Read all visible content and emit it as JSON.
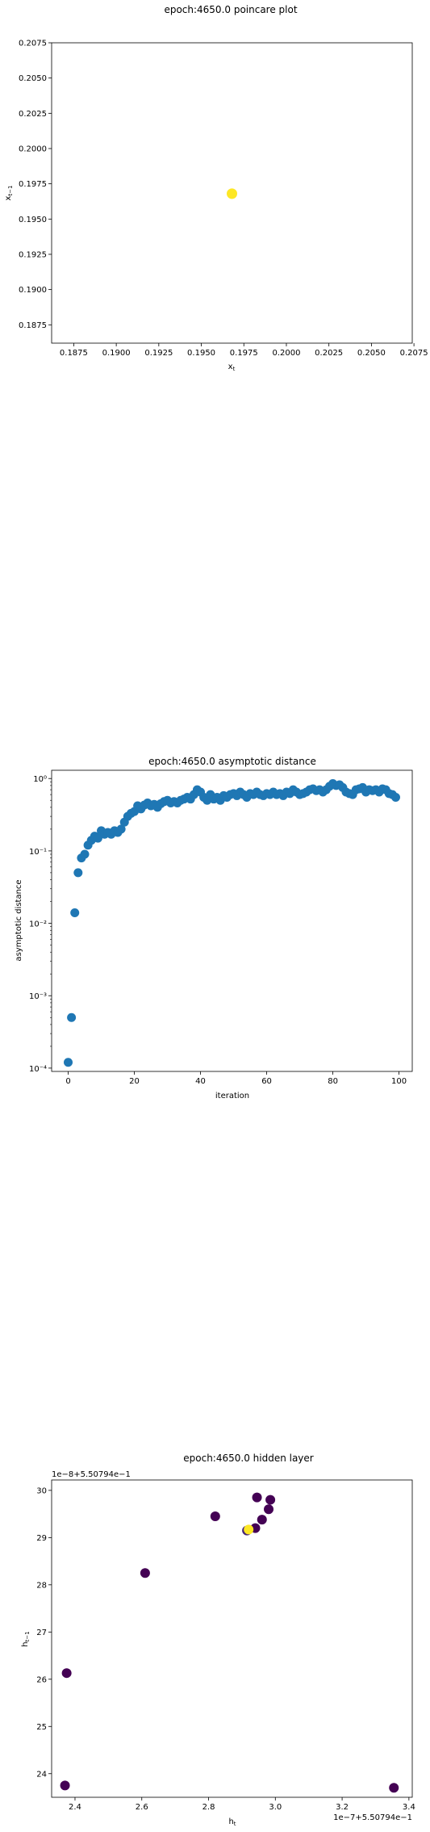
{
  "chart_data": [
    {
      "type": "scatter",
      "title": "epoch:4650.0 poincare plot",
      "xlabel": "x_t",
      "ylabel": "x_{t-1}",
      "xlim": [
        0.1862,
        0.2074
      ],
      "ylim": [
        0.1862,
        0.2075
      ],
      "xticks": [
        "0.1875",
        "0.1900",
        "0.1925",
        "0.1950",
        "0.1975",
        "0.2000",
        "0.2025",
        "0.2050",
        "0.2075"
      ],
      "yticks": [
        "0.1875",
        "0.1900",
        "0.1925",
        "0.1950",
        "0.1975",
        "0.2000",
        "0.2025",
        "0.2050",
        "0.2075"
      ],
      "points": [
        {
          "x": 0.1968,
          "y": 0.1968
        }
      ],
      "point_color": "#fde725"
    },
    {
      "type": "scatter",
      "title": "epoch:4650.0 asymptotic distance",
      "xlabel": "iteration",
      "ylabel": "asymptotic distance",
      "yscale": "log",
      "xlim": [
        -5,
        104
      ],
      "ylim": [
        9e-05,
        1.3
      ],
      "xticks": [
        "0",
        "20",
        "40",
        "60",
        "80",
        "100"
      ],
      "yticks": [
        "10⁻⁴",
        "10⁻³",
        "10⁻²",
        "10⁻¹",
        "10⁰"
      ],
      "point_color": "#1f77b4",
      "x": [
        0,
        1,
        2,
        3,
        4,
        5,
        6,
        7,
        8,
        9,
        10,
        11,
        12,
        13,
        14,
        15,
        16,
        17,
        18,
        19,
        20,
        21,
        22,
        23,
        24,
        25,
        26,
        27,
        28,
        29,
        30,
        31,
        32,
        33,
        34,
        35,
        36,
        37,
        38,
        39,
        40,
        41,
        42,
        43,
        44,
        45,
        46,
        47,
        48,
        49,
        50,
        51,
        52,
        53,
        54,
        55,
        56,
        57,
        58,
        59,
        60,
        61,
        62,
        63,
        64,
        65,
        66,
        67,
        68,
        69,
        70,
        71,
        72,
        73,
        74,
        75,
        76,
        77,
        78,
        79,
        80,
        81,
        82,
        83,
        84,
        85,
        86,
        87,
        88,
        89,
        90,
        91,
        92,
        93,
        94,
        95,
        96,
        97,
        98,
        99
      ],
      "y": [
        0.00012,
        0.0005,
        0.014,
        0.05,
        0.08,
        0.09,
        0.12,
        0.14,
        0.16,
        0.15,
        0.19,
        0.17,
        0.18,
        0.17,
        0.19,
        0.18,
        0.2,
        0.25,
        0.3,
        0.33,
        0.35,
        0.42,
        0.38,
        0.43,
        0.46,
        0.42,
        0.44,
        0.4,
        0.45,
        0.48,
        0.5,
        0.46,
        0.48,
        0.46,
        0.5,
        0.52,
        0.55,
        0.52,
        0.6,
        0.7,
        0.65,
        0.55,
        0.5,
        0.6,
        0.52,
        0.55,
        0.5,
        0.58,
        0.55,
        0.6,
        0.62,
        0.58,
        0.65,
        0.6,
        0.55,
        0.62,
        0.6,
        0.65,
        0.6,
        0.58,
        0.62,
        0.6,
        0.65,
        0.6,
        0.62,
        0.58,
        0.65,
        0.62,
        0.7,
        0.65,
        0.6,
        0.62,
        0.65,
        0.7,
        0.72,
        0.68,
        0.7,
        0.65,
        0.7,
        0.78,
        0.85,
        0.8,
        0.82,
        0.75,
        0.65,
        0.62,
        0.6,
        0.7,
        0.72,
        0.75,
        0.65,
        0.7,
        0.68,
        0.7,
        0.65,
        0.72,
        0.7,
        0.62,
        0.6,
        0.55
      ]
    },
    {
      "type": "scatter",
      "title": "epoch:4650.0 hidden layer",
      "xlabel": "h_t",
      "ylabel": "h_{t-1}",
      "x_offset_text": "1e−7+5.50794e−1",
      "y_offset_text": "1e−8+5.50794e−1",
      "xlim": [
        2.33,
        3.41
      ],
      "ylim": [
        23.5,
        30.22
      ],
      "xticks": [
        2.4,
        2.6,
        2.8,
        3.0,
        3.2,
        3.4
      ],
      "xtick_labels": [
        "2.4",
        "2.6",
        "2.8",
        "3.0",
        "3.2",
        "3.4"
      ],
      "yticks": [
        24,
        25,
        26,
        27,
        28,
        29,
        30
      ],
      "ytick_labels": [
        "24",
        "25",
        "26",
        "27",
        "28",
        "29",
        "30"
      ],
      "points": [
        {
          "x": 2.37,
          "y": 23.75,
          "color": "#440154"
        },
        {
          "x": 2.375,
          "y": 26.13,
          "color": "#440154"
        },
        {
          "x": 2.61,
          "y": 28.25,
          "color": "#440154"
        },
        {
          "x": 2.82,
          "y": 29.45,
          "color": "#440154"
        },
        {
          "x": 2.945,
          "y": 29.85,
          "color": "#440154"
        },
        {
          "x": 2.985,
          "y": 29.8,
          "color": "#440154"
        },
        {
          "x": 2.98,
          "y": 29.6,
          "color": "#440154"
        },
        {
          "x": 2.96,
          "y": 29.38,
          "color": "#440154"
        },
        {
          "x": 2.94,
          "y": 29.2,
          "color": "#440154"
        },
        {
          "x": 2.915,
          "y": 29.15,
          "color": "#482878"
        },
        {
          "x": 3.355,
          "y": 23.7,
          "color": "#440154"
        },
        {
          "x": 2.92,
          "y": 29.17,
          "color": "#fde725"
        }
      ]
    }
  ]
}
